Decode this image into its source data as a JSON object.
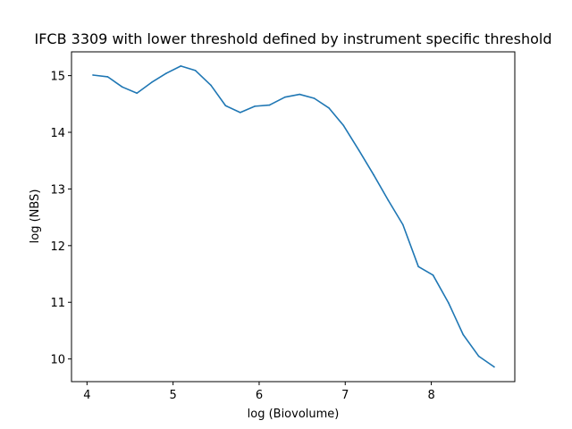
{
  "chart_data": {
    "type": "line",
    "title": "IFCB 3309 with lower threshold defined by instrument specific threshold",
    "xlabel": "log (Biovolume)",
    "ylabel": "log (NBS)",
    "xlim": [
      3.82,
      8.97
    ],
    "ylim": [
      9.6,
      15.42
    ],
    "xticks": [
      4,
      5,
      6,
      7,
      8
    ],
    "yticks": [
      10,
      11,
      12,
      13,
      14,
      15
    ],
    "grid": false,
    "color": "#1f77b4",
    "series": [
      {
        "x": [
          4.07,
          4.24,
          4.41,
          4.58,
          4.75,
          4.92,
          5.09,
          5.26,
          5.44,
          5.61,
          5.78,
          5.95,
          6.12,
          6.3,
          6.47,
          6.64,
          6.81,
          6.98,
          7.16,
          7.33,
          7.5,
          7.67,
          7.85,
          8.02,
          8.2,
          8.37,
          8.55,
          8.73
        ],
        "y": [
          15.01,
          14.98,
          14.8,
          14.69,
          14.88,
          15.04,
          15.17,
          15.09,
          14.83,
          14.47,
          14.35,
          14.46,
          14.48,
          14.62,
          14.67,
          14.6,
          14.43,
          14.12,
          13.68,
          13.25,
          12.8,
          12.37,
          11.63,
          11.48,
          10.99,
          10.43,
          10.05,
          9.86
        ]
      }
    ]
  }
}
